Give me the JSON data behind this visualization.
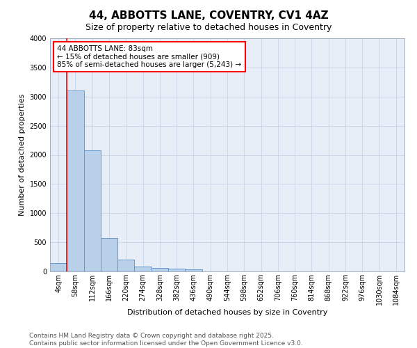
{
  "title_line1": "44, ABBOTTS LANE, COVENTRY, CV1 4AZ",
  "title_line2": "Size of property relative to detached houses in Coventry",
  "xlabel": "Distribution of detached houses by size in Coventry",
  "ylabel": "Number of detached properties",
  "bar_labels": [
    "4sqm",
    "58sqm",
    "112sqm",
    "166sqm",
    "220sqm",
    "274sqm",
    "328sqm",
    "382sqm",
    "436sqm",
    "490sqm",
    "544sqm",
    "598sqm",
    "652sqm",
    "706sqm",
    "760sqm",
    "814sqm",
    "868sqm",
    "922sqm",
    "976sqm",
    "1030sqm",
    "1084sqm"
  ],
  "bar_values": [
    140,
    3100,
    2080,
    575,
    200,
    85,
    60,
    45,
    40,
    5,
    2,
    1,
    0,
    0,
    0,
    0,
    0,
    0,
    0,
    0,
    0
  ],
  "bar_color": "#b8d0ea",
  "bar_edge_color": "#6699cc",
  "vline_x": 0.5,
  "vline_color": "red",
  "annotation_text": "44 ABBOTTS LANE: 83sqm\n← 15% of detached houses are smaller (909)\n85% of semi-detached houses are larger (5,243) →",
  "annotation_box_color": "red",
  "ylim": [
    0,
    4000
  ],
  "yticks": [
    0,
    500,
    1000,
    1500,
    2000,
    2500,
    3000,
    3500,
    4000
  ],
  "grid_color": "#c8d4e8",
  "bg_color": "#e8eef8",
  "footer_line1": "Contains HM Land Registry data © Crown copyright and database right 2025.",
  "footer_line2": "Contains public sector information licensed under the Open Government Licence v3.0.",
  "title_fontsize": 11,
  "subtitle_fontsize": 9,
  "axis_label_fontsize": 8,
  "tick_fontsize": 7,
  "annotation_fontsize": 7.5,
  "footer_fontsize": 6.5
}
